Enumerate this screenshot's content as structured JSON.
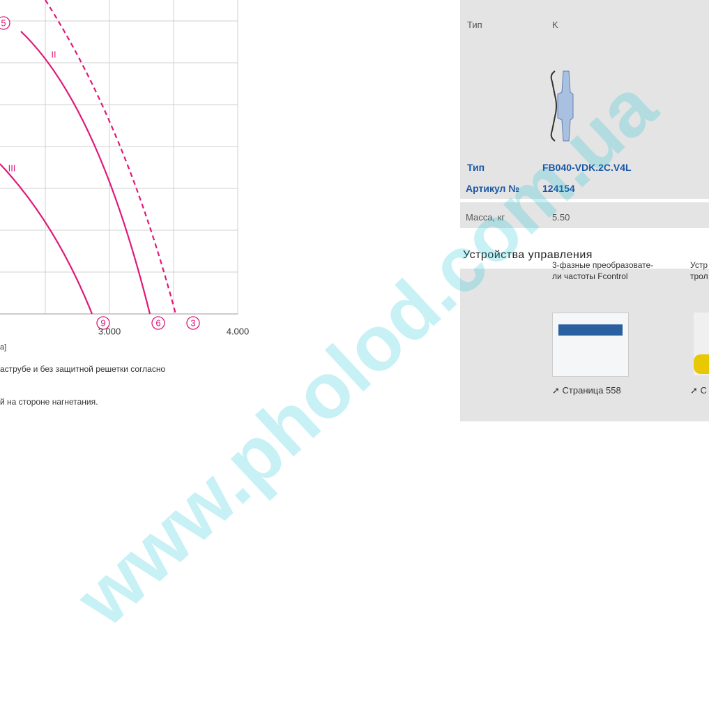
{
  "chart": {
    "x_tick_labels": [
      "3.000",
      "4.000"
    ],
    "curve_labels": [
      "II",
      "III"
    ],
    "point_labels": [
      "5",
      "9",
      "6",
      "3"
    ],
    "axis_fragment": "a]"
  },
  "notes": [
    "аструбе и без защитной решетки согласно",
    "й на стороне нагнетания."
  ],
  "specs": {
    "rows": [
      [
        "Тип",
        "K"
      ],
      [
        "Тип",
        "FB040-VDK.2C.V4L"
      ],
      [
        "Артикул №",
        "124154"
      ],
      [
        "Масса, кг",
        "5.50"
      ]
    ]
  },
  "controls": {
    "title": "Устройства управления",
    "items": [
      {
        "name": [
          "3-фазные преобразовате-",
          "ли частоты Fcontrol"
        ],
        "page": "Страница 558"
      },
      {
        "name": [
          "Устр",
          "трол"
        ],
        "page": "С"
      }
    ]
  },
  "watermark": "www.pholod.com.ua"
}
